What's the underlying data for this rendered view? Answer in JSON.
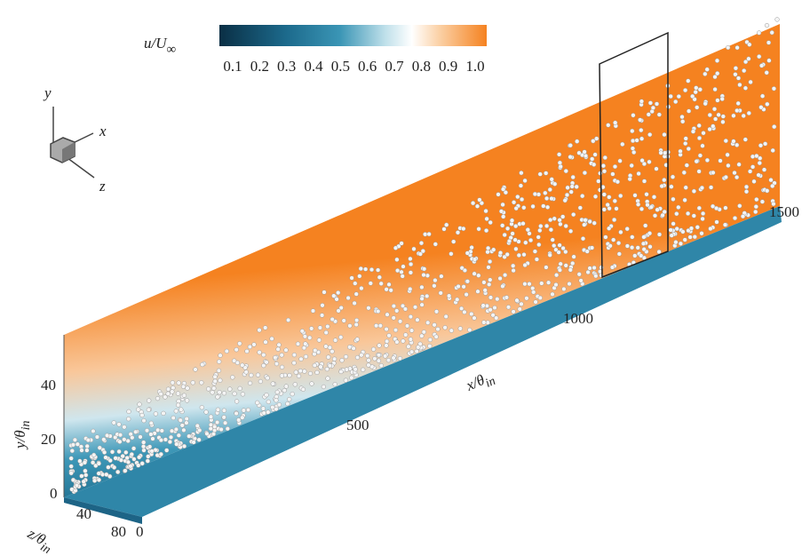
{
  "colorbar": {
    "label": {
      "base": "u/U",
      "sub": "∞"
    },
    "ticks": [
      "0.1",
      "0.2",
      "0.3",
      "0.4",
      "0.5",
      "0.6",
      "0.7",
      "0.8",
      "0.9",
      "1.0"
    ]
  },
  "triad": {
    "y": "y",
    "x": "x",
    "z": "z"
  },
  "x_axis": {
    "label": {
      "base": "x/θ",
      "sub": "in"
    },
    "ticks": [
      "500",
      "1000",
      "1500"
    ]
  },
  "y_axis": {
    "label": {
      "base": "y/θ",
      "sub": "in"
    },
    "ticks": [
      "0",
      "20",
      "40"
    ]
  },
  "z_axis": {
    "label": {
      "base": "z/θ",
      "sub": "in"
    },
    "ticks": [
      "40",
      "80",
      "0"
    ]
  }
}
